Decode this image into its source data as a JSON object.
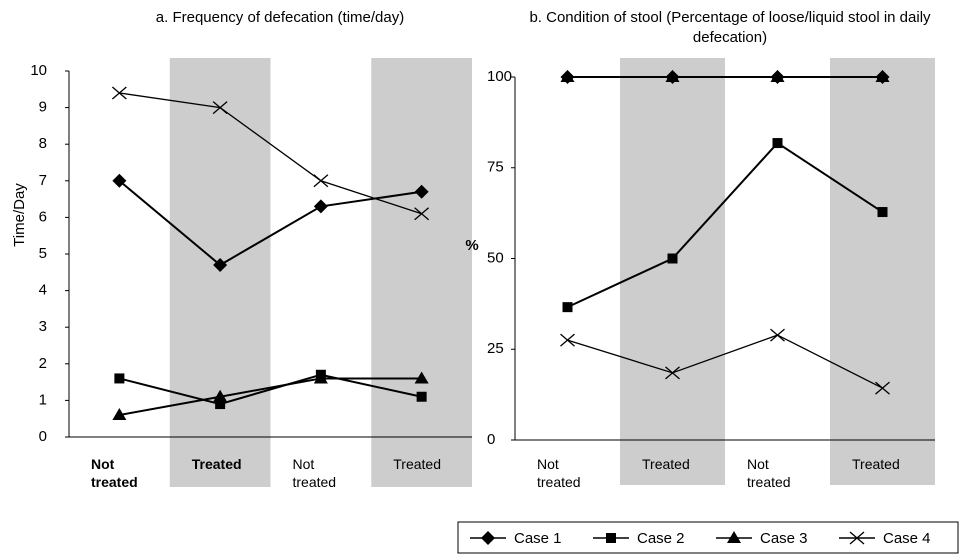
{
  "chart_data": [
    {
      "type": "line",
      "title": "a.  Frequency of defecation (time/day)",
      "ylabel": "Time/Day",
      "categories": [
        "Not treated",
        "Treated",
        "Not treated",
        "Treated"
      ],
      "bold_labels": [
        true,
        true,
        false,
        false
      ],
      "shaded": [
        false,
        true,
        false,
        true
      ],
      "ylim": [
        0,
        10
      ],
      "yticks": [
        0,
        1,
        2,
        3,
        4,
        5,
        6,
        7,
        8,
        9,
        10
      ],
      "series": [
        {
          "name": "Case 1",
          "marker": "diamond",
          "color": "#000000",
          "values": [
            7.0,
            4.7,
            6.3,
            6.7
          ]
        },
        {
          "name": "Case 2",
          "marker": "square",
          "color": "#000000",
          "values": [
            1.6,
            0.9,
            1.7,
            1.1
          ]
        },
        {
          "name": "Case 3",
          "marker": "triangle",
          "color": "#000000",
          "values": [
            0.6,
            1.1,
            1.6,
            1.6
          ]
        },
        {
          "name": "Case 4",
          "marker": "x",
          "color": "#000000",
          "values": [
            9.4,
            9.0,
            7.0,
            6.1
          ]
        }
      ]
    },
    {
      "type": "line",
      "title": "b.  Condition of stool (Percentage of loose/liquid stool in daily defecation)",
      "ylabel": "%",
      "categories": [
        "Not treated",
        "Treated",
        "Not treated",
        "Treated"
      ],
      "shaded": [
        false,
        true,
        false,
        true
      ],
      "ylim": [
        0,
        100
      ],
      "yticks": [
        0,
        25,
        50,
        75,
        100
      ],
      "series": [
        {
          "marker": "diamond",
          "color": "#000000",
          "values": [
            100,
            100,
            100,
            100
          ]
        },
        {
          "marker": "square",
          "color": "#000000",
          "values": [
            36.6,
            50,
            81.8,
            62.8
          ]
        },
        {
          "marker": "triangle",
          "color": "#000000",
          "values": [
            100,
            100,
            100,
            100
          ]
        },
        {
          "marker": "x",
          "color": "#000000",
          "values": [
            27.5,
            18.5,
            28.9,
            14.3
          ]
        }
      ]
    }
  ]
}
